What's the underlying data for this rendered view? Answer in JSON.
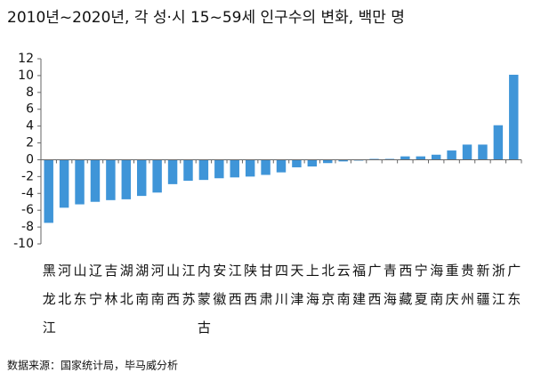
{
  "chart_data": {
    "type": "bar",
    "title": "2010년~2020년, 각 성·시 15~59세 인구수의 변화, 백만 명",
    "source": "数据来源：国家统计局，毕马威分析",
    "categories": [
      "黑龙江",
      "河北",
      "山东",
      "辽宁",
      "吉林",
      "湖北",
      "湖南",
      "河南",
      "山西",
      "江苏",
      "内蒙古",
      "安徽",
      "江西",
      "陕西",
      "甘肃",
      "四川",
      "天津",
      "上海",
      "北京",
      "云南",
      "福建",
      "广西",
      "青海",
      "西藏",
      "宁夏",
      "海南",
      "重庆",
      "贵州",
      "新疆",
      "浙江",
      "广东"
    ],
    "values": [
      -7.5,
      -5.7,
      -5.3,
      -5.0,
      -4.8,
      -4.7,
      -4.3,
      -3.9,
      -2.9,
      -2.5,
      -2.4,
      -2.2,
      -2.1,
      -2.0,
      -1.8,
      -1.5,
      -0.9,
      -0.8,
      -0.4,
      -0.2,
      -0.1,
      0.1,
      0.1,
      0.4,
      0.4,
      0.6,
      1.1,
      1.8,
      1.8,
      4.1,
      10.1
    ],
    "color": "#3f95d8",
    "ylim": [
      -10,
      12
    ],
    "yticks": [
      -10,
      -8,
      -6,
      -4,
      -2,
      0,
      2,
      4,
      6,
      8,
      10,
      12
    ],
    "grid": false
  }
}
